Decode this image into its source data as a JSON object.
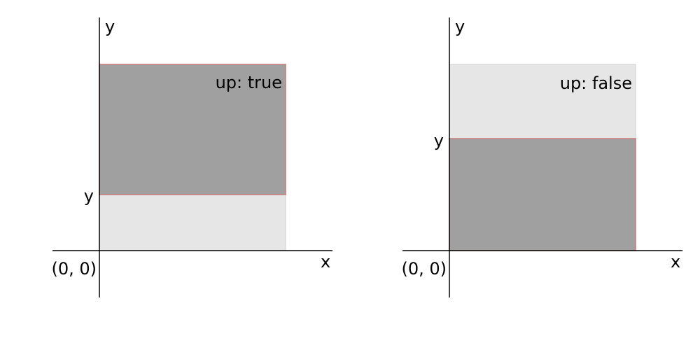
{
  "panels": [
    {
      "label": "up: true",
      "origin_label": "(0, 0)",
      "x_label": "x",
      "y_axis_label": "y",
      "y_marker_label": "y",
      "up": true
    },
    {
      "label": "up: false",
      "origin_label": "(0, 0)",
      "x_label": "x",
      "y_axis_label": "y",
      "y_marker_label": "y",
      "up": false
    }
  ],
  "colors": {
    "axis": "#000000",
    "filled": "#a0a0a0",
    "unfilled": "#e6e6e6",
    "edge": "#c97a7a",
    "background_edge": "#d0d0d0"
  }
}
